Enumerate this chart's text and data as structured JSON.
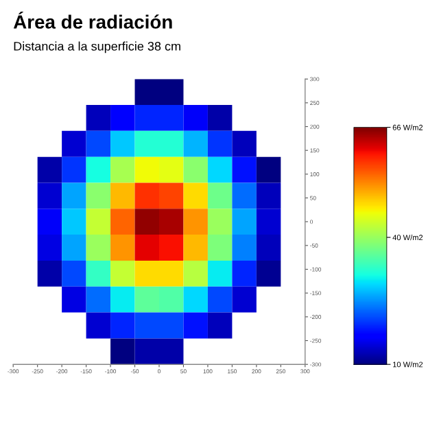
{
  "chart_data": {
    "type": "heatmap",
    "title": "Área de radiación",
    "subtitle": "Distancia a la superficie 38 cm",
    "xlim": [
      -300,
      300
    ],
    "ylim": [
      -300,
      300
    ],
    "xticks": [
      -300,
      -250,
      -200,
      -150,
      -100,
      -50,
      0,
      50,
      100,
      150,
      200,
      250,
      300
    ],
    "yticks": [
      -300,
      -250,
      -200,
      -150,
      -100,
      -50,
      0,
      50,
      100,
      150,
      200,
      250,
      300
    ],
    "clim": [
      10,
      66
    ],
    "cticks": [
      {
        "value": 10,
        "label": "10 W/m2"
      },
      {
        "value": 40,
        "label": "40 W/m2"
      },
      {
        "value": 66,
        "label": "66 W/m2"
      }
    ],
    "cells": [
      [
        null,
        null,
        null,
        null,
        null,
        10,
        10,
        null,
        null,
        null,
        null,
        null
      ],
      [
        null,
        null,
        null,
        13,
        17,
        19,
        19,
        16,
        12,
        null,
        null,
        null
      ],
      [
        null,
        null,
        14,
        21,
        28,
        32,
        32,
        27,
        20,
        13,
        null,
        null
      ],
      [
        null,
        12,
        20,
        31,
        41,
        46,
        45,
        39,
        29,
        18,
        10,
        null
      ],
      [
        null,
        14,
        26,
        39,
        50,
        58,
        57,
        48,
        37,
        23,
        13,
        null
      ],
      [
        null,
        16,
        28,
        43,
        55,
        65,
        64,
        52,
        40,
        26,
        14,
        null
      ],
      [
        null,
        15,
        26,
        40,
        52,
        61,
        60,
        50,
        38,
        24,
        13,
        null
      ],
      [
        null,
        12,
        21,
        33,
        43,
        48,
        48,
        42,
        30,
        19,
        11,
        null
      ],
      [
        null,
        null,
        15,
        23,
        30,
        36,
        35,
        29,
        21,
        14,
        null,
        null
      ],
      [
        null,
        null,
        null,
        14,
        19,
        21,
        21,
        18,
        13,
        null,
        null,
        null
      ],
      [
        null,
        null,
        null,
        null,
        10,
        12,
        12,
        null,
        null,
        null,
        null,
        null
      ]
    ],
    "grid": false
  }
}
